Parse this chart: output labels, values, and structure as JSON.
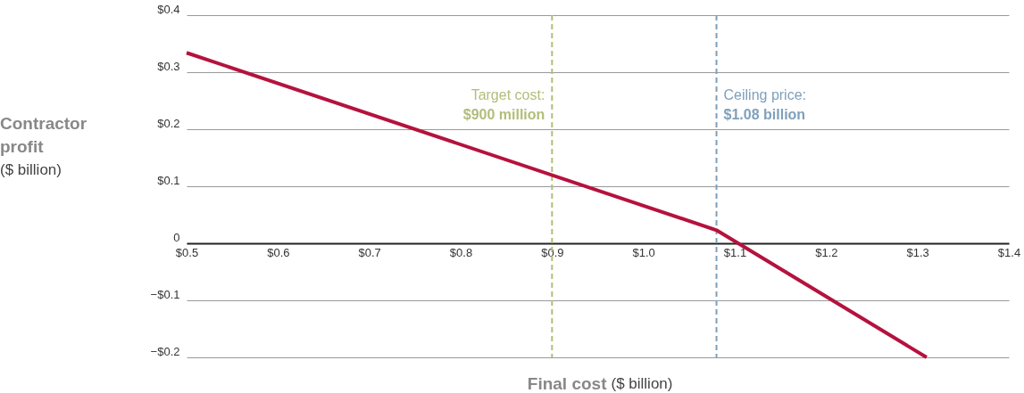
{
  "chart_data": {
    "type": "line",
    "xlabel": "Final cost ($ billion)",
    "ylabel": "Contractor profit ($ billion)",
    "x": [
      0.5,
      1.08,
      1.31
    ],
    "series": [
      {
        "color": "#b5123e",
        "values": [
          0.334,
          0.023,
          -0.2
        ]
      }
    ],
    "xlim": [
      0.5,
      1.4
    ],
    "ylim": [
      -0.2,
      0.4
    ],
    "xticks": [
      {
        "value": 0.5,
        "label": "$0.5"
      },
      {
        "value": 0.6,
        "label": "$0.6"
      },
      {
        "value": 0.7,
        "label": "$0.7"
      },
      {
        "value": 0.8,
        "label": "$0.8"
      },
      {
        "value": 0.9,
        "label": "$0.9"
      },
      {
        "value": 1.0,
        "label": "$1.0"
      },
      {
        "value": 1.1,
        "label": "$1.1"
      },
      {
        "value": 1.2,
        "label": "$1.2"
      },
      {
        "value": 1.3,
        "label": "$1.3"
      },
      {
        "value": 1.4,
        "label": "$1.4"
      }
    ],
    "yticks": [
      {
        "value": -0.2,
        "label": "−$0.2"
      },
      {
        "value": -0.1,
        "label": "−$0.1"
      },
      0,
      {
        "value": 0.1,
        "label": "$0.1"
      },
      {
        "value": 0.2,
        "label": "$0.2"
      },
      {
        "value": 0.3,
        "label": "$0.3"
      },
      {
        "value": 0.4,
        "label": "$0.4"
      }
    ],
    "ref_lines": [
      {
        "axis": "x",
        "value": 0.9,
        "label": "Target cost: $900 million",
        "color": "#b3bd7a",
        "line_style": "dashed"
      },
      {
        "axis": "x",
        "value": 1.08,
        "label": "Ceiling price: $1.08 billion",
        "color": "#7fa0bb",
        "line_style": "dashed"
      }
    ],
    "grid": "y",
    "marker": "none",
    "line_style": "solid"
  }
}
